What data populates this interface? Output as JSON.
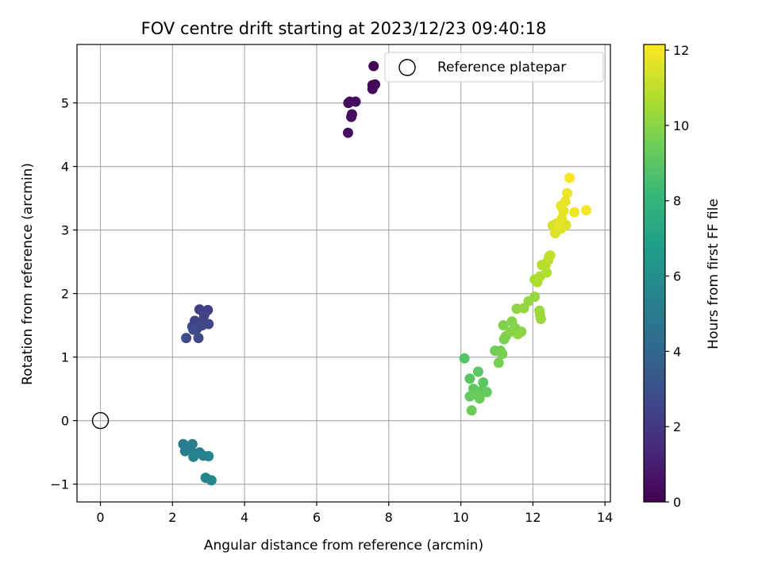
{
  "chart_data": {
    "type": "scatter",
    "title": "FOV centre drift starting at 2023/12/23 09:40:18",
    "xlabel": "Angular distance from reference (arcmin)",
    "ylabel": "Rotation from reference (arcmin)",
    "xlim": [
      -0.65,
      14.15
    ],
    "ylim": [
      -1.28,
      5.92
    ],
    "xticks": [
      0,
      2,
      4,
      6,
      8,
      10,
      12,
      14
    ],
    "yticks": [
      -1,
      0,
      1,
      2,
      3,
      4,
      5
    ],
    "grid": true,
    "legend": {
      "placement": "top-right",
      "entries": [
        "Reference platepar"
      ]
    },
    "colorbar": {
      "label": "Hours from first FF file",
      "range": [
        0,
        12.15
      ],
      "ticks": [
        0,
        2,
        4,
        6,
        8,
        10,
        12
      ],
      "colormap": "viridis"
    },
    "reference_point": {
      "name": "Reference platepar",
      "x": 0,
      "y": 0
    },
    "series": [
      {
        "points": [
          [
            7.58,
            5.58,
            0.1
          ],
          [
            7.55,
            5.28,
            0.18
          ],
          [
            7.62,
            5.29,
            0.22
          ],
          [
            7.55,
            5.22,
            0.26
          ],
          [
            6.88,
            5.0,
            0.32
          ],
          [
            6.92,
            5.02,
            0.36
          ],
          [
            7.08,
            5.02,
            0.4
          ],
          [
            6.98,
            4.82,
            0.44
          ],
          [
            6.96,
            4.78,
            0.48
          ],
          [
            6.87,
            4.53,
            0.52
          ]
        ]
      },
      {
        "points": [
          [
            2.75,
            1.75,
            2.25
          ],
          [
            2.98,
            1.74,
            2.3
          ],
          [
            2.88,
            1.66,
            2.35
          ],
          [
            2.62,
            1.57,
            2.4
          ],
          [
            2.78,
            1.55,
            2.45
          ],
          [
            2.55,
            1.48,
            2.5
          ],
          [
            2.68,
            1.45,
            2.55
          ],
          [
            3.0,
            1.52,
            2.6
          ],
          [
            2.82,
            1.5,
            2.65
          ],
          [
            2.58,
            1.43,
            2.7
          ],
          [
            2.38,
            1.3,
            2.75
          ],
          [
            2.72,
            1.3,
            2.8
          ]
        ]
      },
      {
        "points": [
          [
            2.3,
            -0.37,
            5.1
          ],
          [
            2.55,
            -0.37,
            5.15
          ],
          [
            2.45,
            -0.45,
            5.2
          ],
          [
            2.35,
            -0.48,
            5.25
          ],
          [
            2.62,
            -0.52,
            5.3
          ],
          [
            2.75,
            -0.5,
            5.35
          ],
          [
            2.85,
            -0.55,
            5.4
          ],
          [
            2.58,
            -0.57,
            5.45
          ],
          [
            3.0,
            -0.56,
            5.5
          ],
          [
            2.92,
            -0.9,
            5.6
          ],
          [
            3.08,
            -0.94,
            5.7
          ]
        ]
      },
      {
        "points": [
          [
            10.1,
            0.98,
            8.9
          ],
          [
            10.25,
            0.66,
            8.95
          ],
          [
            10.48,
            0.77,
            9.0
          ],
          [
            10.62,
            0.6,
            9.05
          ],
          [
            10.35,
            0.5,
            9.1
          ],
          [
            10.55,
            0.46,
            9.15
          ],
          [
            10.72,
            0.45,
            9.2
          ],
          [
            10.25,
            0.38,
            9.25
          ],
          [
            10.4,
            0.42,
            9.3
          ],
          [
            10.52,
            0.35,
            9.35
          ],
          [
            10.3,
            0.16,
            9.4
          ],
          [
            10.95,
            1.1,
            9.5
          ],
          [
            11.1,
            1.1,
            9.55
          ],
          [
            11.05,
            0.91,
            9.6
          ],
          [
            11.15,
            1.05,
            9.65
          ],
          [
            11.2,
            1.28,
            9.7
          ],
          [
            11.25,
            1.33,
            9.75
          ],
          [
            11.18,
            1.5,
            9.8
          ],
          [
            11.42,
            1.56,
            9.85
          ],
          [
            11.52,
            1.45,
            9.9
          ],
          [
            11.38,
            1.4,
            9.95
          ],
          [
            11.68,
            1.4,
            10.0
          ],
          [
            11.58,
            1.36,
            10.05
          ],
          [
            11.55,
            1.76,
            10.1
          ],
          [
            11.75,
            1.77,
            10.15
          ],
          [
            11.88,
            1.88,
            10.2
          ],
          [
            12.05,
            1.95,
            10.25
          ],
          [
            12.18,
            1.73,
            10.3
          ],
          [
            12.22,
            1.6,
            10.35
          ],
          [
            12.2,
            1.66,
            10.4
          ]
        ]
      },
      {
        "points": [
          [
            12.05,
            2.22,
            10.6
          ],
          [
            12.12,
            2.18,
            10.65
          ],
          [
            12.2,
            2.27,
            10.7
          ],
          [
            12.38,
            2.33,
            10.75
          ],
          [
            12.25,
            2.45,
            10.8
          ],
          [
            12.35,
            2.45,
            10.85
          ],
          [
            12.42,
            2.52,
            10.9
          ],
          [
            12.45,
            2.58,
            10.95
          ],
          [
            12.48,
            2.6,
            11.0
          ],
          [
            12.55,
            3.07,
            11.4
          ],
          [
            12.65,
            3.1,
            11.45
          ],
          [
            12.62,
            2.95,
            11.5
          ],
          [
            12.78,
            3.02,
            11.55
          ],
          [
            12.92,
            3.08,
            11.6
          ],
          [
            12.8,
            3.18,
            11.65
          ],
          [
            12.85,
            3.3,
            11.7
          ],
          [
            12.78,
            3.38,
            11.75
          ],
          [
            12.9,
            3.45,
            11.8
          ],
          [
            12.95,
            3.58,
            11.85
          ],
          [
            13.15,
            3.28,
            11.9
          ],
          [
            13.48,
            3.31,
            11.95
          ],
          [
            13.02,
            3.82,
            12.05
          ],
          [
            12.72,
            3.1,
            11.7
          ]
        ]
      }
    ]
  }
}
